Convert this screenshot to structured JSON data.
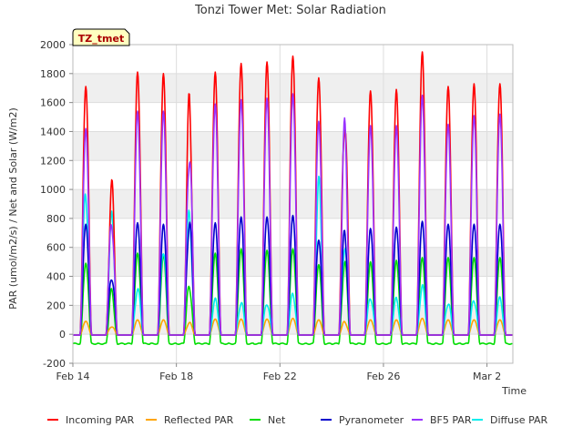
{
  "chart_data": {
    "type": "line",
    "title": "Tonzi Tower Met: Solar Radiation",
    "xlabel": "Time",
    "ylabel": "PAR (umol/m2/s) / Net and Solar (W/m2)",
    "ylim": [
      -200,
      2000
    ],
    "yticks": [
      -200,
      0,
      200,
      400,
      600,
      800,
      1000,
      1200,
      1400,
      1600,
      1800,
      2000
    ],
    "xlim_days": [
      0,
      17
    ],
    "xtick_labels": [
      {
        "day": 0,
        "label": "Feb 14"
      },
      {
        "day": 4,
        "label": "Feb 18"
      },
      {
        "day": 8,
        "label": "Feb 22"
      },
      {
        "day": 12,
        "label": "Feb 26"
      },
      {
        "day": 16,
        "label": "Mar 2"
      }
    ],
    "grid": true,
    "legend_placement": "bottom",
    "site_tag": "TZ_tmet",
    "day_count": 17,
    "day_peaks": {
      "incoming": [
        1710,
        990,
        1810,
        1800,
        1560,
        1810,
        1870,
        1880,
        1920,
        1770,
        1530,
        1680,
        1690,
        1950,
        1710,
        1730,
        1730
      ],
      "reflected": [
        90,
        55,
        100,
        100,
        80,
        105,
        105,
        105,
        110,
        100,
        85,
        100,
        100,
        110,
        100,
        100,
        100
      ],
      "net": [
        490,
        290,
        560,
        550,
        340,
        560,
        590,
        580,
        590,
        480,
        490,
        500,
        510,
        530,
        530,
        530,
        530
      ],
      "pyranometer": [
        760,
        410,
        770,
        760,
        790,
        770,
        810,
        810,
        820,
        650,
        670,
        730,
        740,
        780,
        760,
        760,
        760
      ],
      "bf5": [
        1420,
        790,
        1540,
        1540,
        1280,
        1590,
        1620,
        1630,
        1660,
        1470,
        1370,
        1440,
        1440,
        1650,
        1450,
        1510,
        1520
      ],
      "diffuse": [
        960,
        780,
        310,
        610,
        830,
        230,
        220,
        220,
        270,
        1010,
        610,
        260,
        240,
        320,
        220,
        240,
        240
      ]
    },
    "series": [
      {
        "name": "Incoming PAR",
        "key": "incoming",
        "color": "#ff0000",
        "night": -5
      },
      {
        "name": "Reflected PAR",
        "key": "reflected",
        "color": "#ffa500",
        "night": -5
      },
      {
        "name": "Net",
        "key": "net",
        "color": "#00dd00",
        "night": -65
      },
      {
        "name": "Pyranometer",
        "key": "pyranometer",
        "color": "#0000cc",
        "night": -5
      },
      {
        "name": "BF5 PAR",
        "key": "bf5",
        "color": "#9933ff",
        "night": -5
      },
      {
        "name": "Diffuse PAR",
        "key": "diffuse",
        "color": "#00eeee",
        "night": -5
      }
    ]
  }
}
